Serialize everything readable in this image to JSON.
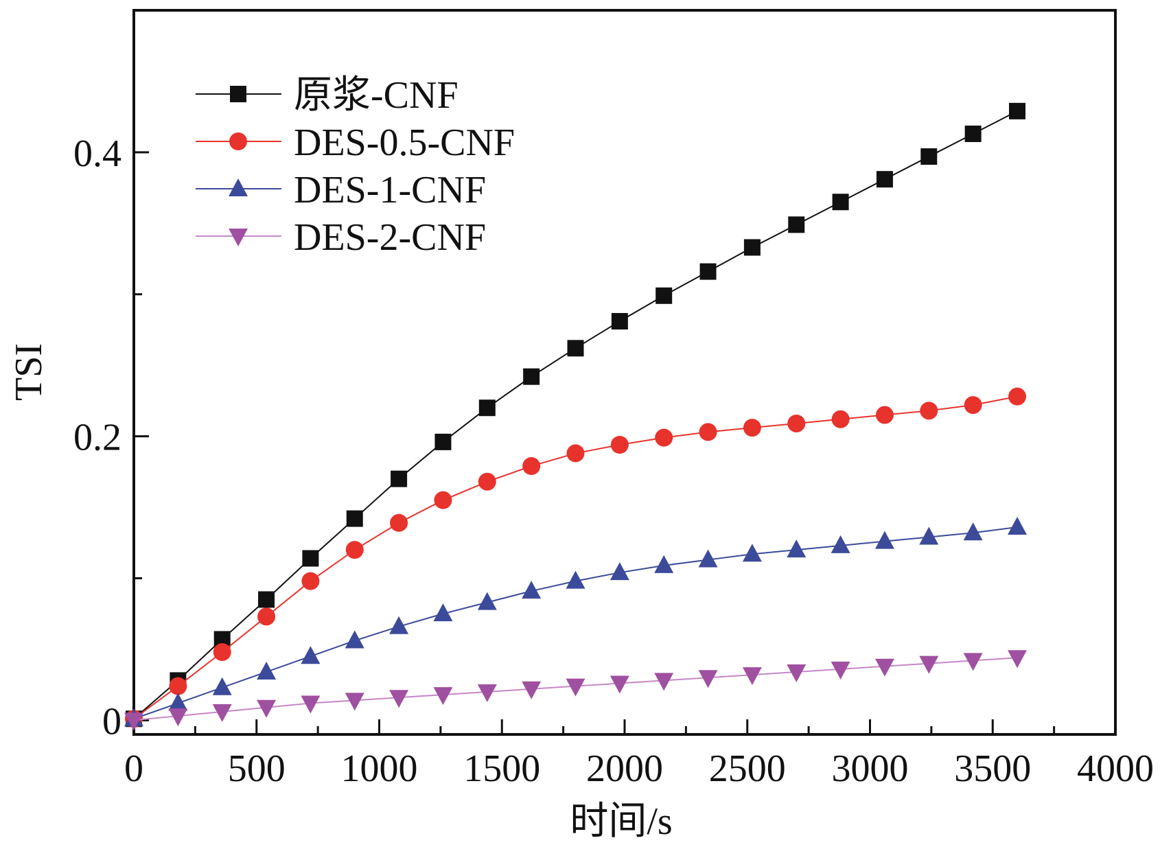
{
  "chart_data": {
    "type": "line",
    "xlabel": "时间/s",
    "ylabel": "TSI",
    "xlim": [
      0,
      4000
    ],
    "ylim": [
      -0.01,
      0.5
    ],
    "xticks": [
      0,
      500,
      1000,
      1500,
      2000,
      2500,
      3000,
      3500,
      4000
    ],
    "xtick_labels": [
      "0",
      "500",
      "1000",
      "1500",
      "2000",
      "2500",
      "3000",
      "3500",
      "4000"
    ],
    "yticks": [
      0,
      0.2,
      0.4
    ],
    "ytick_labels": [
      "0",
      "0.2",
      "0.4"
    ],
    "grid": false,
    "legend_position": "top-left",
    "x": [
      0,
      180,
      360,
      540,
      720,
      900,
      1080,
      1260,
      1440,
      1620,
      1800,
      1980,
      2160,
      2340,
      2520,
      2700,
      2880,
      3060,
      3240,
      3420,
      3600
    ],
    "series": [
      {
        "name": "原浆-CNF",
        "marker": "square",
        "color": "#111111",
        "line_color": "#111111",
        "values": [
          0.001,
          0.028,
          0.057,
          0.085,
          0.114,
          0.142,
          0.17,
          0.196,
          0.22,
          0.242,
          0.262,
          0.281,
          0.299,
          0.316,
          0.333,
          0.349,
          0.365,
          0.381,
          0.397,
          0.413,
          0.429
        ]
      },
      {
        "name": "DES-0.5-CNF",
        "marker": "circle",
        "color": "#e8322c",
        "line_color": "#e8322c",
        "values": [
          0.001,
          0.024,
          0.048,
          0.073,
          0.098,
          0.12,
          0.139,
          0.155,
          0.168,
          0.179,
          0.188,
          0.194,
          0.199,
          0.203,
          0.206,
          0.209,
          0.212,
          0.215,
          0.218,
          0.222,
          0.228
        ]
      },
      {
        "name": "DES-1-CNF",
        "marker": "triangle-up",
        "color": "#3c4a9a",
        "line_color": "#3c4a9a",
        "values": [
          0.001,
          0.012,
          0.023,
          0.034,
          0.045,
          0.056,
          0.066,
          0.075,
          0.083,
          0.091,
          0.098,
          0.104,
          0.109,
          0.113,
          0.117,
          0.12,
          0.123,
          0.126,
          0.129,
          0.132,
          0.136
        ]
      },
      {
        "name": "DES-2-CNF",
        "marker": "triangle-down",
        "color": "#a050a0",
        "line_color": "#c688c6",
        "values": [
          0.0,
          0.003,
          0.006,
          0.009,
          0.012,
          0.014,
          0.016,
          0.018,
          0.02,
          0.022,
          0.024,
          0.026,
          0.028,
          0.03,
          0.032,
          0.034,
          0.036,
          0.038,
          0.04,
          0.042,
          0.044
        ]
      }
    ]
  }
}
